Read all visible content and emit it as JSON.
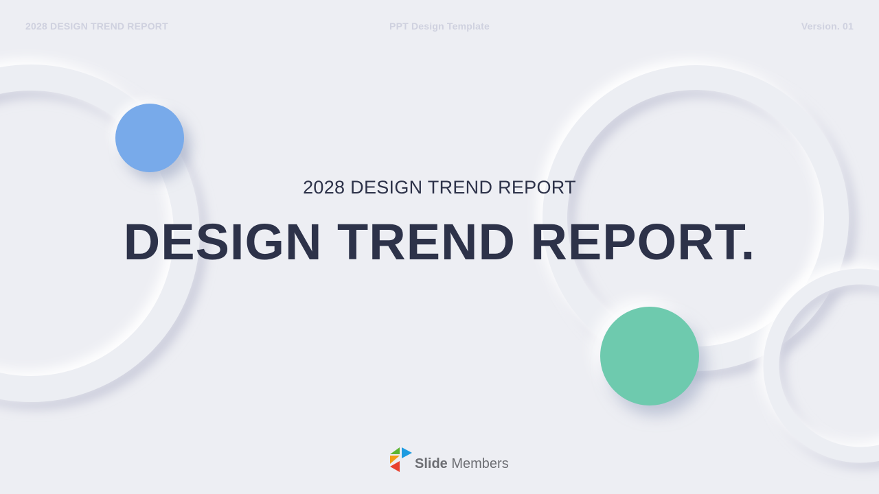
{
  "header": {
    "left": "2028 DESIGN TREND REPORT",
    "center": "PPT Design Template",
    "right": "Version. 01"
  },
  "main": {
    "subtitle": "2028 DESIGN TREND REPORT",
    "title": "DESIGN TREND REPORT."
  },
  "logo": {
    "bold": "Slide",
    "light": " Members"
  },
  "colors": {
    "background": "#edeef3",
    "blue_dot": "#78aaea",
    "green_dot": "#6ecaae",
    "text": "#2d3249"
  }
}
